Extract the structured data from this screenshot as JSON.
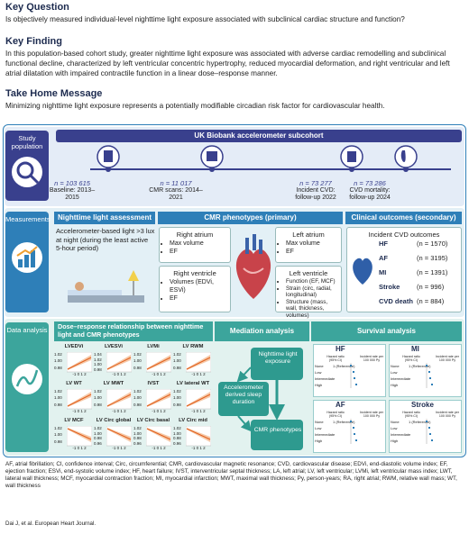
{
  "key_question": {
    "heading": "Key Question",
    "text": "Is objectively measured individual-level nighttime light exposure associated with subclinical cardiac structure and function?"
  },
  "key_finding": {
    "heading": "Key Finding",
    "text": "In this population-based cohort study, greater nighttime light exposure was associated with adverse cardiac remodelling and subclinical functional decline, characterized by left ventricular concentric hypertrophy, reduced myocardial deformation, and right ventricular and left atrial dilatation with impaired contractile function in a linear dose–response manner."
  },
  "take_home": {
    "heading": "Take Home Message",
    "text": "Minimizing nighttime light exposure represents a potentially modifiable circadian risk factor for cardiovascular health."
  },
  "study_population": {
    "label": "Study population",
    "title": "UK Biobank accelerometer subcohort",
    "steps": [
      {
        "n": "n = 103 615",
        "period": "Baseline: 2013–2015"
      },
      {
        "n": "n = 11 017",
        "period": "CMR scans: 2014–2021"
      },
      {
        "n": "n = 73 277",
        "period": "Incident CVD: follow-up 2022"
      },
      {
        "n": "n = 73 286",
        "period": "CVD mortality: follow-up 2024"
      }
    ]
  },
  "measurements": {
    "label": "Measurements",
    "light": {
      "heading": "Nighttime light assessment",
      "text": "Accelerometer-based light >3 lux at night (during the least active 5-hour period)"
    },
    "cmr": {
      "heading": "CMR phenotypes (primary)",
      "right_atrium": {
        "title": "Right atrium",
        "items": [
          "Max volume",
          "EF"
        ]
      },
      "right_ventricle": {
        "title": "Right ventricle",
        "items": [
          "Volumes (EDVi, ESVi)",
          "EF"
        ]
      },
      "left_atrium": {
        "title": "Left atrium",
        "items": [
          "Max volume",
          "EF"
        ]
      },
      "left_ventricle": {
        "title": "Left ventricle",
        "items": [
          "Function (EF, MCF)",
          "Strain (circ, radial, longitudinal)",
          "Structure (mass, wall, thickness, volumes)"
        ]
      }
    },
    "outcomes": {
      "heading": "Clinical outcomes (secondary)",
      "subheading": "Incident CVD outcomes",
      "rows": [
        {
          "name": "HF",
          "n": "(n = 1570)"
        },
        {
          "name": "AF",
          "n": "(n = 3195)"
        },
        {
          "name": "MI",
          "n": "(n = 1391)"
        },
        {
          "name": "Stroke",
          "n": "(n = 996)"
        },
        {
          "name": "CVD death",
          "n": "(n = 884)"
        }
      ]
    }
  },
  "data_analysis": {
    "label": "Data analysis",
    "dose_response": {
      "heading": "Dose–response relationship between nighttime light and CMR phenotypes",
      "xticks": "-1 0 1 2",
      "plots": [
        {
          "label": "LVEDVi",
          "yticks": [
            "1.02",
            "1.00",
            "0.98"
          ]
        },
        {
          "label": "LVESVi",
          "yticks": [
            "1.04",
            "1.02",
            "1.00",
            "0.98"
          ]
        },
        {
          "label": "LVMi",
          "yticks": [
            "1.02",
            "1.00",
            "0.98"
          ]
        },
        {
          "label": "LV RWM",
          "yticks": [
            "1.02",
            "1.00",
            "0.98"
          ]
        },
        {
          "label": "LV WT",
          "yticks": [
            "1.02",
            "1.00",
            "0.98"
          ]
        },
        {
          "label": "LV MWT",
          "yticks": [
            "1.02",
            "1.00",
            "0.98"
          ]
        },
        {
          "label": "IVST",
          "yticks": [
            "1.02",
            "1.00",
            "0.98"
          ]
        },
        {
          "label": "LV lateral WT",
          "yticks": [
            "1.02",
            "1.00",
            "0.98"
          ]
        },
        {
          "label": "LV MCF",
          "yticks": [
            "1.02",
            "1.00",
            "0.98"
          ]
        },
        {
          "label": "LV Circ global",
          "yticks": [
            "1.02",
            "1.00",
            "0.98",
            "0.96"
          ]
        },
        {
          "label": "LV Circ basal",
          "yticks": [
            "1.02",
            "1.00",
            "0.98",
            "0.96"
          ]
        },
        {
          "label": "LV Circ mid",
          "yticks": [
            "1.02",
            "1.00",
            "0.98",
            "0.96"
          ]
        }
      ]
    },
    "mediation": {
      "heading": "Mediation analysis",
      "exposure": "Nighttime light exposure",
      "mediator": "Accelerometer derived sleep duration",
      "outcome": "CMR phenotypes"
    },
    "survival": {
      "heading": "Survival analysis",
      "hr_header": "Hazard ratio (95% CI)",
      "rate_header": "Incident rate per 100 000 Py",
      "groups": [
        "None",
        "Low",
        "Intermediate",
        "High"
      ],
      "reference": "1 (Reference)",
      "panels": [
        "HF",
        "MI",
        "AF",
        "Stroke"
      ]
    }
  },
  "footer": {
    "abbreviations": "AF, atrial fibrillation; CI, confidence interval; Circ, circumferential; CMR, cardiovascular magnetic resonance; CVD, cardiovascular disease; EDVi, end-diastolic volume index; EF, ejection fraction; ESVi, end-systolic volume index; HF, heart failure; IVST, interventricular septal thickness; LA, left atrial; LV, left ventricular; LVMi, left ventricular mass index; LWT, lateral wall thickness; MCF, myocardial contraction fraction; MI, myocardial infarction; MWT, maximal wall thickness; Py, person-years; RA, right atrial; RWM, relative wall mass; WT, wall thickness",
    "citation": "Dai J, et al. European Heart Journal."
  }
}
